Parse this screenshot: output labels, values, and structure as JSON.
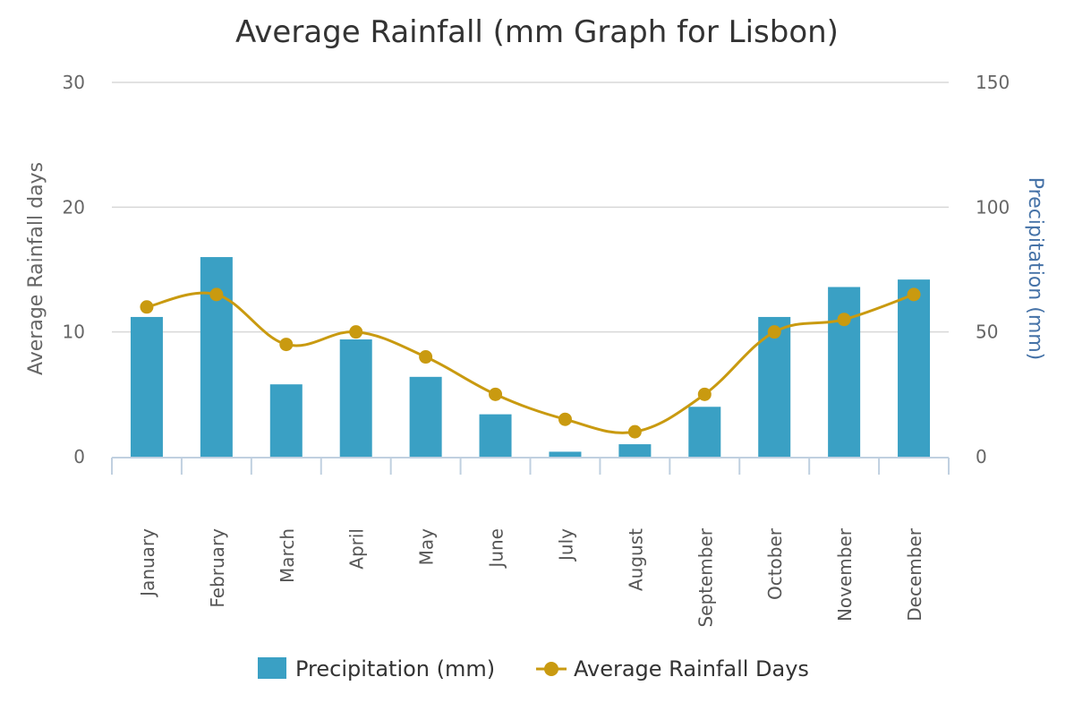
{
  "chart_data": {
    "type": "bar",
    "title": "Average Rainfall (mm Graph for Lisbon)",
    "categories": [
      "January",
      "February",
      "March",
      "April",
      "May",
      "June",
      "July",
      "August",
      "September",
      "October",
      "November",
      "December"
    ],
    "series": [
      {
        "name": "Precipitation (mm)",
        "type": "bar",
        "axis": "right",
        "color": "#3aa0c4",
        "values": [
          56,
          80,
          29,
          47,
          32,
          17,
          2,
          5,
          20,
          56,
          68,
          71
        ]
      },
      {
        "name": "Average Rainfall Days",
        "type": "line",
        "axis": "left",
        "color": "#c99a10",
        "values": [
          12,
          13,
          9,
          10,
          8,
          5,
          3,
          2,
          5,
          10,
          11,
          13
        ]
      }
    ],
    "y_left": {
      "label": "Average Rainfall days",
      "ylim": [
        0,
        30
      ],
      "ticks": [
        "0",
        "10",
        "20",
        "30"
      ]
    },
    "y_right": {
      "label": "Precipitation (mm)",
      "ylim": [
        0,
        150
      ],
      "ticks": [
        "0",
        "50",
        "100",
        "150"
      ]
    },
    "grid": true,
    "legend_position": "bottom-center"
  }
}
